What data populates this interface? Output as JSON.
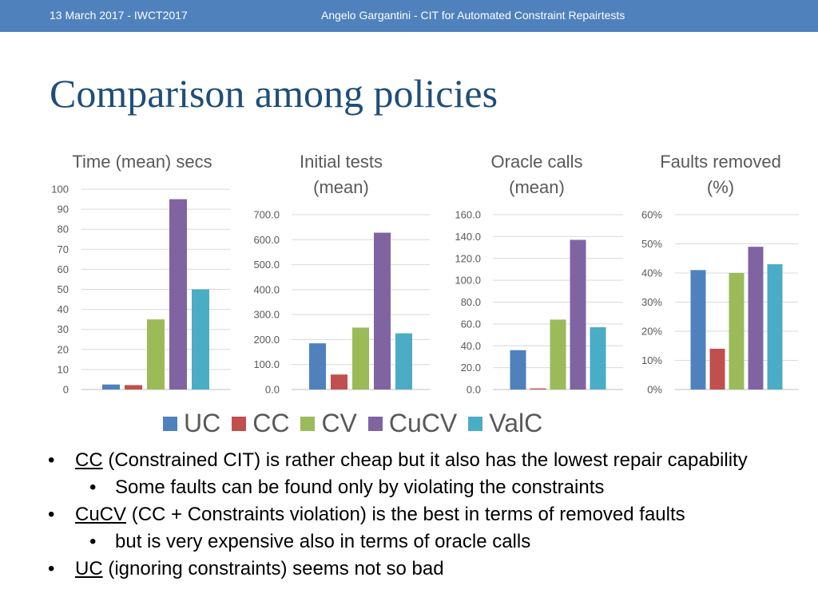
{
  "header": {
    "date": "13 March 2017 - IWCT2017",
    "author": "Angelo Gargantini -  CIT for Automated Constraint Repairtests"
  },
  "slide_title": "Comparison among policies",
  "colors": {
    "UC": "#4f81bd",
    "CC": "#c0504d",
    "CV": "#9bbb59",
    "CuCV": "#8064a2",
    "ValC": "#4bacc6"
  },
  "legend": [
    "UC",
    "CC",
    "CV",
    "CuCV",
    "ValC"
  ],
  "chart_data": [
    {
      "type": "bar",
      "title": [
        "Time (mean) secs"
      ],
      "categories": [
        "UC",
        "CC",
        "CV",
        "CuCV",
        "ValC"
      ],
      "values": [
        2.5,
        2.2,
        35,
        95,
        50
      ],
      "ylim": [
        0,
        100
      ],
      "yticks": [
        "0",
        "10",
        "20",
        "30",
        "40",
        "50",
        "60",
        "70",
        "80",
        "90",
        "100"
      ]
    },
    {
      "type": "bar",
      "title": [
        "Initial tests",
        "(mean)"
      ],
      "categories": [
        "UC",
        "CC",
        "CV",
        "CuCV",
        "ValC"
      ],
      "values": [
        185,
        60,
        248,
        628,
        225
      ],
      "ylim": [
        0,
        700
      ],
      "yticks": [
        "0.0",
        "100.0",
        "200.0",
        "300.0",
        "400.0",
        "500.0",
        "600.0",
        "700.0"
      ]
    },
    {
      "type": "bar",
      "title": [
        "Oracle calls",
        "(mean)"
      ],
      "categories": [
        "UC",
        "CC",
        "CV",
        "CuCV",
        "ValC"
      ],
      "values": [
        36,
        1,
        64,
        137,
        57
      ],
      "ylim": [
        0,
        160
      ],
      "yticks": [
        "0.0",
        "20.0",
        "40.0",
        "60.0",
        "80.0",
        "100.0",
        "120.0",
        "140.0",
        "160.0"
      ]
    },
    {
      "type": "bar",
      "title": [
        "Faults removed",
        "(%)"
      ],
      "categories": [
        "UC",
        "CC",
        "CV",
        "CuCV",
        "ValC"
      ],
      "values": [
        41,
        14,
        40,
        49,
        43
      ],
      "ylim": [
        0,
        60
      ],
      "yticks": [
        "0%",
        "10%",
        "20%",
        "30%",
        "40%",
        "50%",
        "60%"
      ]
    }
  ],
  "bullets": [
    {
      "level": 0,
      "term": "CC",
      "text": " (Constrained CIT) is rather cheap but it also has the lowest repair capability"
    },
    {
      "level": 1,
      "term": "",
      "text": "Some faults can be found only by violating the constraints"
    },
    {
      "level": 0,
      "term": "CuCV",
      "text": " (CC + Constraints violation) is the best in terms of removed faults"
    },
    {
      "level": 1,
      "term": "",
      "text": "but is very expensive also in terms of oracle calls"
    },
    {
      "level": 0,
      "term": "UC",
      "text": " (ignoring constraints) seems not so bad"
    }
  ],
  "bullet_glyph": "•"
}
